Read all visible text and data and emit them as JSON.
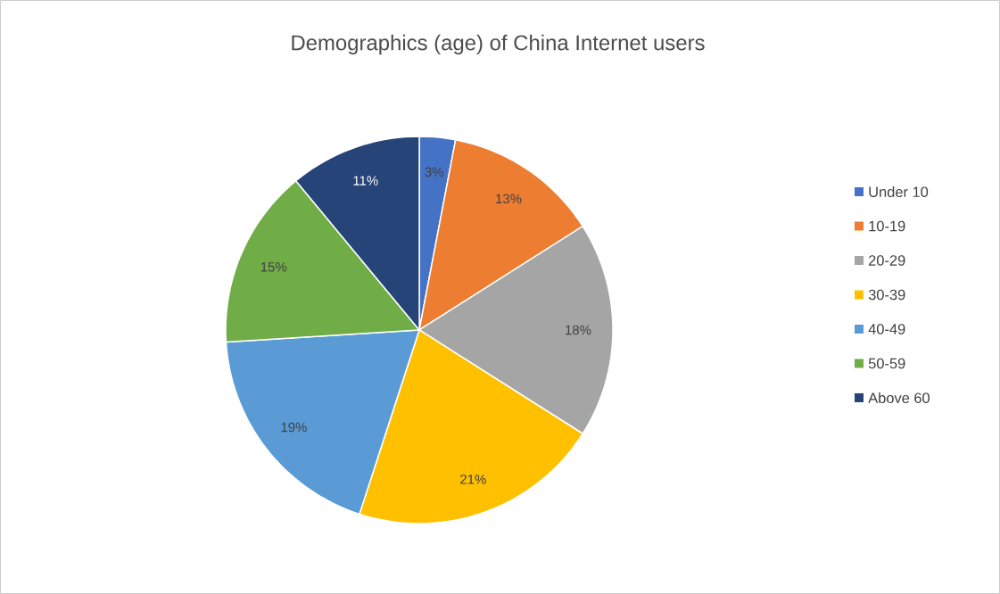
{
  "chart_data": {
    "type": "pie",
    "title": "Demographics (age) of China Internet users",
    "categories": [
      "Under 10",
      "10-19",
      "20-29",
      "30-39",
      "40-49",
      "50-59",
      "Above 60"
    ],
    "values": [
      3,
      13,
      18,
      21,
      19,
      15,
      11
    ],
    "value_labels": [
      "3%",
      "13%",
      "18%",
      "21%",
      "19%",
      "15%",
      "11%"
    ],
    "colors": [
      "#4472c4",
      "#ed7d31",
      "#a5a5a5",
      "#ffc000",
      "#5b9bd5",
      "#70ad47",
      "#264478"
    ],
    "legend": "right"
  }
}
